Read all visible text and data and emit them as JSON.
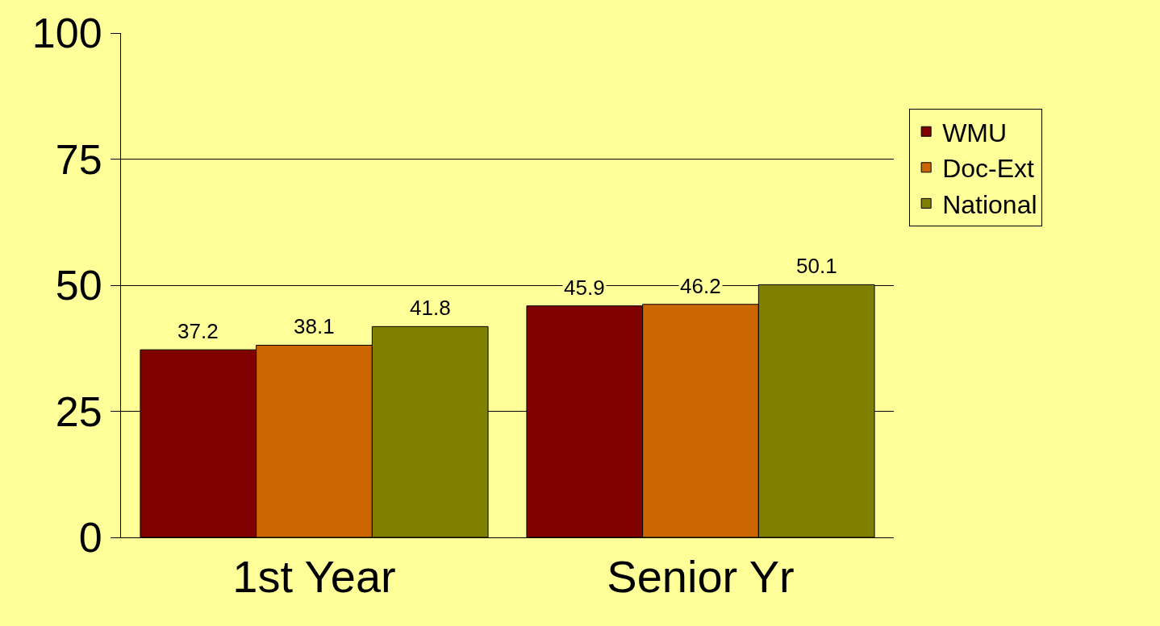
{
  "chart_data": {
    "type": "bar",
    "categories": [
      "1st Year",
      "Senior Yr"
    ],
    "series": [
      {
        "name": "WMU",
        "color": "#800000",
        "values": [
          37.2,
          45.9
        ]
      },
      {
        "name": "Doc-Ext",
        "color": "#cc6600",
        "values": [
          38.1,
          46.2
        ]
      },
      {
        "name": "National",
        "color": "#808000",
        "values": [
          41.8,
          50.1
        ]
      }
    ],
    "ylim": [
      0,
      100
    ],
    "yticks": [
      0,
      25,
      50,
      75,
      100
    ],
    "grid": "y",
    "legend": "right",
    "data_labels": true
  }
}
